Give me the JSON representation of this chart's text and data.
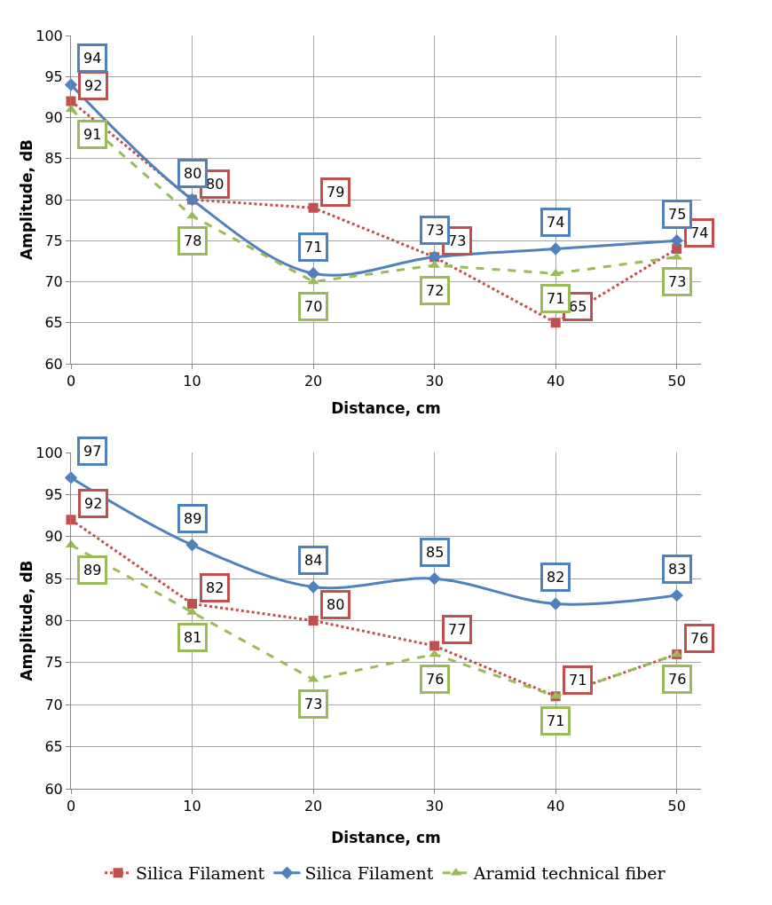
{
  "chart_data": [
    {
      "type": "line",
      "xlabel": "Distance, cm",
      "ylabel": "Amplitude, dB",
      "x": [
        0,
        10,
        20,
        30,
        40,
        50
      ],
      "xlim": [
        0,
        52
      ],
      "xticks": [
        0,
        10,
        20,
        30,
        40,
        50
      ],
      "ylim": [
        60,
        100
      ],
      "yticks": [
        60,
        65,
        70,
        75,
        80,
        85,
        90,
        95,
        100
      ],
      "grid": true,
      "data_labels": true,
      "series": [
        {
          "color": "#c0504d",
          "marker": "square",
          "line_style": "dotted",
          "values": [
            92,
            80,
            79,
            73,
            65,
            74
          ]
        },
        {
          "color": "#4f81bd",
          "marker": "diamond",
          "line_style": "solid",
          "values": [
            94,
            80,
            71,
            73,
            74,
            75
          ]
        },
        {
          "color": "#9bbb59",
          "marker": "triangle",
          "line_style": "dashed",
          "values": [
            91,
            78,
            70,
            72,
            71,
            73
          ]
        }
      ]
    },
    {
      "type": "line",
      "xlabel": "Distance, cm",
      "ylabel": "Amplitude, dB",
      "x": [
        0,
        10,
        20,
        30,
        40,
        50
      ],
      "xlim": [
        0,
        52
      ],
      "xticks": [
        0,
        10,
        20,
        30,
        40,
        50
      ],
      "ylim": [
        60,
        100
      ],
      "yticks": [
        60,
        65,
        70,
        75,
        80,
        85,
        90,
        95,
        100
      ],
      "grid": true,
      "data_labels": true,
      "legend": "bottom",
      "series": [
        {
          "name": "Silica Filament",
          "color": "#c0504d",
          "marker": "square",
          "line_style": "dotted",
          "values": [
            92,
            82,
            80,
            77,
            71,
            76
          ]
        },
        {
          "name": "Silica Filament",
          "color": "#4f81bd",
          "marker": "diamond",
          "line_style": "solid",
          "values": [
            97,
            89,
            84,
            85,
            82,
            83
          ]
        },
        {
          "name": "Aramid technical fiber",
          "color": "#9bbb59",
          "marker": "triangle",
          "line_style": "dashed",
          "values": [
            89,
            81,
            73,
            76,
            71,
            76
          ]
        }
      ]
    }
  ]
}
